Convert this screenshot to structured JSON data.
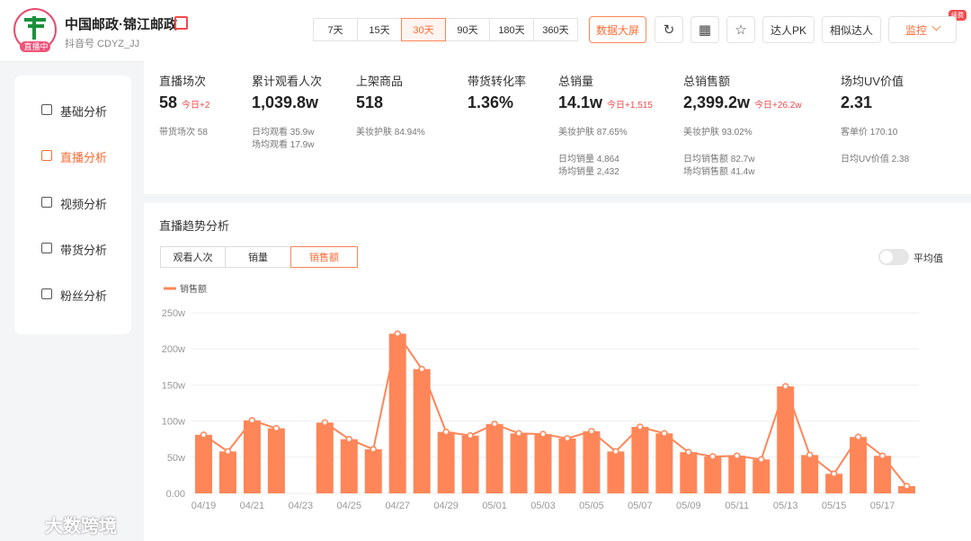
{
  "header": {
    "name": "中国邮政·锦江邮政",
    "badge": "直播中",
    "account": "抖音号 CDYZ_JJ",
    "periods": [
      "7天",
      "15天",
      "30天",
      "90天",
      "180天",
      "360天"
    ],
    "active_period": 2,
    "buttons": [
      "数据大屏",
      "达人PK",
      "相似达人",
      "监控"
    ],
    "renew_badge": "续费"
  },
  "sidebar": {
    "items": [
      "基础分析",
      "直播分析",
      "视频分析",
      "带货分析",
      "粉丝分析"
    ],
    "active": 1
  },
  "stats": [
    {
      "label": "直播场次",
      "value": "58",
      "today": "今日+2",
      "details": [
        [
          "带货场次 58"
        ]
      ]
    },
    {
      "label": "累计观看人次",
      "value": "1,039.8w",
      "details": [
        [
          "日均观看 35.9w",
          "场均观看 17.9w"
        ]
      ]
    },
    {
      "label": "上架商品",
      "value": "518",
      "details": [
        [
          "美妆护肤 84.94%"
        ]
      ]
    },
    {
      "label": "带货转化率",
      "value": "1.36%",
      "details": []
    },
    {
      "label": "总销量",
      "value": "14.1w",
      "today": "今日+1,515",
      "details": [
        [
          "美妆护肤 87.65%"
        ],
        [
          "日均销量 4,864",
          "场均销量 2,432"
        ]
      ]
    },
    {
      "label": "总销售额",
      "value": "2,399.2w",
      "today": "今日+26.2w",
      "details": [
        [
          "美妆护肤 93.02%"
        ],
        [
          "日均销售额 82.7w",
          "场均销售额 41.4w"
        ]
      ]
    },
    {
      "label": "场均UV价值",
      "value": "2.31",
      "details": [
        [
          "客单价 170.10"
        ],
        [
          "日均UV价值 2.38"
        ]
      ]
    }
  ],
  "chart_section": {
    "title": "直播趋势分析",
    "tabs": [
      "观看人次",
      "销量",
      "销售额"
    ],
    "active_tab": 2,
    "toggle": "平均值"
  },
  "chart_data": {
    "type": "bar",
    "overlay_line": true,
    "categories": [
      "04/19",
      null,
      "04/21",
      null,
      "04/23",
      null,
      "04/25",
      null,
      "04/27",
      null,
      "04/29",
      null,
      "05/01",
      null,
      "05/03",
      null,
      "05/05",
      null,
      "05/07",
      null,
      "05/09",
      null,
      "05/11",
      null,
      "05/13",
      null,
      "05/15",
      null,
      "05/17",
      null
    ],
    "series": [
      {
        "name": "销售额",
        "color": "#ff8658",
        "values": [
          81,
          58,
          101,
          90,
          null,
          98,
          75,
          61,
          221,
          172,
          85,
          80,
          96,
          83,
          82,
          76,
          86,
          58,
          92,
          83,
          57,
          51,
          52,
          47,
          148,
          53,
          27,
          78,
          52,
          10
        ]
      }
    ],
    "ylim": [
      0,
      250
    ],
    "yticks": [
      {
        "value": 0,
        "label": "0.00"
      },
      {
        "value": 50,
        "label": "50w"
      },
      {
        "value": 100,
        "label": "100w"
      },
      {
        "value": 150,
        "label": "150w"
      },
      {
        "value": 200,
        "label": "200w"
      },
      {
        "value": 250,
        "label": "250w"
      }
    ],
    "grid": true
  },
  "watermark": "大数跨境"
}
